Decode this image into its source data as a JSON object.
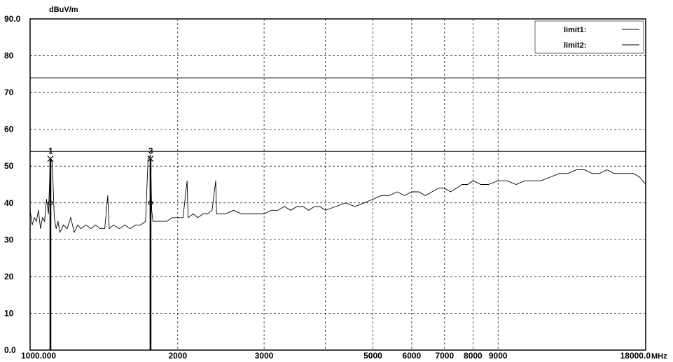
{
  "chart_data": {
    "type": "line",
    "ylabel_unit": "dBuV/m",
    "xlabel_unit": "MHz",
    "x_scale": "log",
    "xlim": [
      1000,
      18000
    ],
    "ylim": [
      0,
      90
    ],
    "grid": true,
    "y_ticks": [
      {
        "value": 0,
        "label": "0.0"
      },
      {
        "value": 10,
        "label": "10"
      },
      {
        "value": 20,
        "label": "20"
      },
      {
        "value": 30,
        "label": "30"
      },
      {
        "value": 40,
        "label": "40"
      },
      {
        "value": 50,
        "label": "50"
      },
      {
        "value": 60,
        "label": "60"
      },
      {
        "value": 70,
        "label": "70"
      },
      {
        "value": 80,
        "label": "80"
      },
      {
        "value": 90,
        "label": "90.0"
      }
    ],
    "x_ticks": [
      {
        "value": 1000,
        "label": "1000.000"
      },
      {
        "value": 2000,
        "label": "2000"
      },
      {
        "value": 3000,
        "label": "3000"
      },
      {
        "value": 5000,
        "label": "5000"
      },
      {
        "value": 6000,
        "label": "6000"
      },
      {
        "value": 7000,
        "label": "7000"
      },
      {
        "value": 8000,
        "label": "8000"
      },
      {
        "value": 9000,
        "label": "9000"
      },
      {
        "value": 18000,
        "label": "18000.0"
      }
    ],
    "x_grid_values": [
      2000,
      3000,
      4000,
      5000,
      6000,
      7000,
      8000,
      9000
    ],
    "legend": {
      "placement": "top-right",
      "entries": [
        {
          "name": "limit1:"
        },
        {
          "name": "limit2:"
        }
      ]
    },
    "limit_lines": [
      {
        "name": "limit1",
        "value": 74
      },
      {
        "name": "limit2",
        "value": 54
      }
    ],
    "series": [
      {
        "name": "",
        "points": [
          [
            1000,
            38
          ],
          [
            1010,
            34
          ],
          [
            1020,
            36
          ],
          [
            1030,
            35
          ],
          [
            1040,
            38
          ],
          [
            1050,
            33
          ],
          [
            1060,
            36
          ],
          [
            1070,
            35
          ],
          [
            1080,
            41
          ],
          [
            1090,
            37
          ],
          [
            1100,
            52
          ],
          [
            1110,
            51
          ],
          [
            1120,
            36
          ],
          [
            1130,
            33
          ],
          [
            1140,
            35
          ],
          [
            1150,
            32
          ],
          [
            1170,
            34
          ],
          [
            1190,
            33
          ],
          [
            1210,
            36
          ],
          [
            1230,
            32
          ],
          [
            1250,
            34
          ],
          [
            1270,
            33
          ],
          [
            1300,
            34
          ],
          [
            1330,
            33
          ],
          [
            1360,
            34
          ],
          [
            1390,
            33
          ],
          [
            1420,
            33
          ],
          [
            1440,
            42
          ],
          [
            1450,
            33
          ],
          [
            1480,
            34
          ],
          [
            1520,
            33
          ],
          [
            1560,
            34
          ],
          [
            1600,
            33
          ],
          [
            1640,
            34
          ],
          [
            1680,
            34
          ],
          [
            1720,
            35
          ],
          [
            1740,
            52
          ],
          [
            1760,
            53
          ],
          [
            1770,
            38
          ],
          [
            1780,
            35
          ],
          [
            1820,
            35
          ],
          [
            1860,
            35
          ],
          [
            1900,
            35
          ],
          [
            1950,
            36
          ],
          [
            2000,
            36
          ],
          [
            2050,
            36
          ],
          [
            2090,
            46
          ],
          [
            2100,
            36
          ],
          [
            2150,
            37
          ],
          [
            2200,
            36
          ],
          [
            2250,
            37
          ],
          [
            2300,
            37
          ],
          [
            2350,
            38
          ],
          [
            2390,
            46
          ],
          [
            2400,
            37
          ],
          [
            2500,
            37
          ],
          [
            2600,
            38
          ],
          [
            2700,
            37
          ],
          [
            2800,
            37
          ],
          [
            2900,
            37
          ],
          [
            3000,
            37
          ],
          [
            3100,
            38
          ],
          [
            3200,
            38
          ],
          [
            3300,
            39
          ],
          [
            3400,
            38
          ],
          [
            3500,
            39
          ],
          [
            3600,
            39
          ],
          [
            3700,
            38
          ],
          [
            3800,
            39
          ],
          [
            3900,
            39
          ],
          [
            4000,
            38
          ],
          [
            4200,
            39
          ],
          [
            4400,
            40
          ],
          [
            4600,
            39
          ],
          [
            4800,
            40
          ],
          [
            5000,
            41
          ],
          [
            5200,
            42
          ],
          [
            5400,
            42
          ],
          [
            5600,
            43
          ],
          [
            5800,
            42
          ],
          [
            6000,
            43
          ],
          [
            6200,
            43
          ],
          [
            6400,
            42
          ],
          [
            6600,
            43
          ],
          [
            6800,
            44
          ],
          [
            7000,
            44
          ],
          [
            7200,
            43
          ],
          [
            7400,
            44
          ],
          [
            7600,
            45
          ],
          [
            7800,
            45
          ],
          [
            8000,
            46
          ],
          [
            8300,
            45
          ],
          [
            8600,
            45
          ],
          [
            9000,
            46
          ],
          [
            9400,
            46
          ],
          [
            9800,
            45
          ],
          [
            10200,
            46
          ],
          [
            10600,
            46
          ],
          [
            11000,
            46
          ],
          [
            11500,
            47
          ],
          [
            12000,
            48
          ],
          [
            12500,
            48
          ],
          [
            13000,
            49
          ],
          [
            13500,
            49
          ],
          [
            14000,
            48
          ],
          [
            14500,
            48
          ],
          [
            15000,
            49
          ],
          [
            15500,
            48
          ],
          [
            16000,
            48
          ],
          [
            16500,
            48
          ],
          [
            17000,
            48
          ],
          [
            17500,
            47
          ],
          [
            18000,
            45
          ]
        ]
      }
    ],
    "markers": [
      {
        "label": "1",
        "x": 1100,
        "y": 52
      },
      {
        "label": "3",
        "x": 1760,
        "y": 52
      },
      {
        "label": "",
        "x": 1100,
        "y": 40
      },
      {
        "label": "",
        "x": 1760,
        "y": 40
      }
    ]
  }
}
